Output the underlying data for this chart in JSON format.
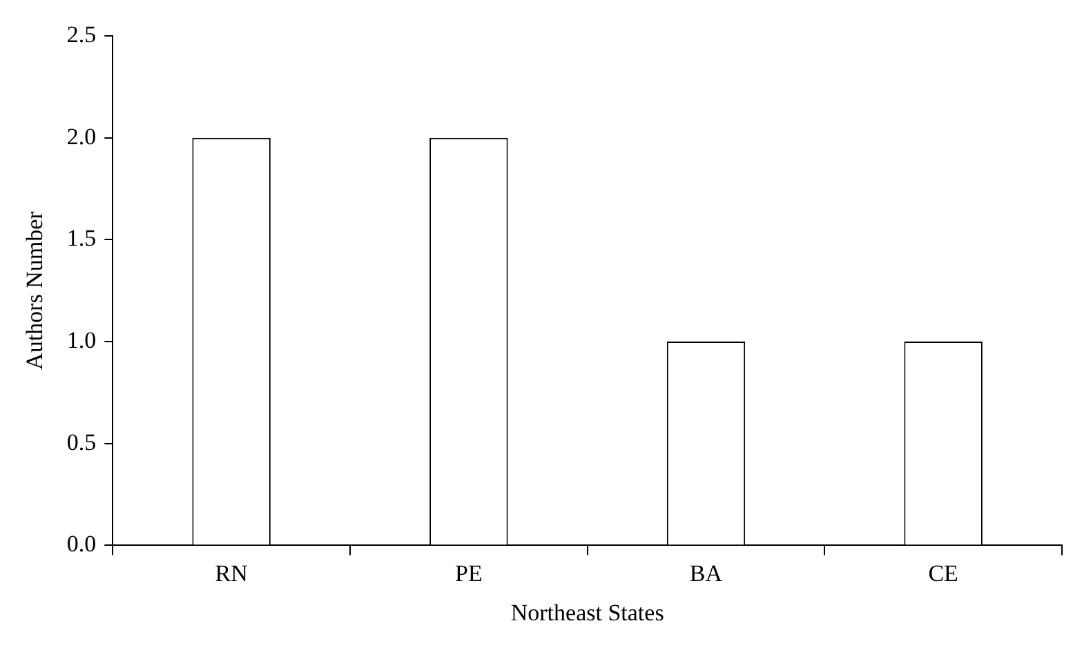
{
  "chart_data": {
    "type": "bar",
    "xlabel": "Northeast States",
    "ylabel": "Authors Number",
    "categories": [
      "RN",
      "PE",
      "BA",
      "CE"
    ],
    "values": [
      2,
      2,
      1,
      1
    ],
    "color": "#ffffff",
    "ylim": [
      0,
      2.5
    ],
    "yticks": [
      {
        "value": 0,
        "label": "0.0"
      },
      {
        "value": 0.5,
        "label": "0.5"
      },
      {
        "value": 1,
        "label": "1.0"
      },
      {
        "value": 1.5,
        "label": "1.5"
      },
      {
        "value": 2,
        "label": "2.0"
      },
      {
        "value": 2.5,
        "label": "2.5"
      }
    ],
    "grid": false,
    "legend": false
  }
}
